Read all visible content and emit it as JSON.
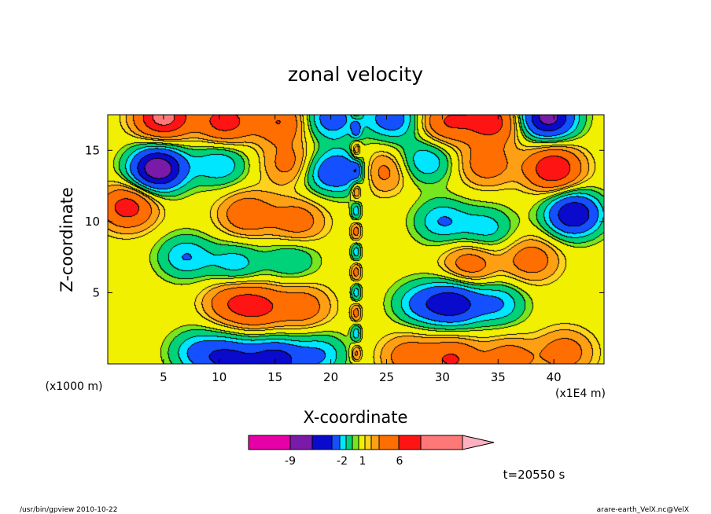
{
  "chart_data": {
    "type": "heatmap",
    "title": "zonal velocity",
    "xlabel": "X-coordinate",
    "ylabel": "Z-coordinate",
    "x_unit_label": "(x1E4 m)",
    "y_unit_label": "(x1000 m)",
    "xlim": [
      0,
      44.5
    ],
    "ylim": [
      0,
      17.5
    ],
    "x_ticks": [
      "5",
      "10",
      "15",
      "20",
      "25",
      "30",
      "35",
      "40"
    ],
    "y_ticks": [
      "5",
      "10",
      "15"
    ],
    "colorbar": {
      "colors": [
        "#e600a8",
        "#7a1aa8",
        "#0a0acc",
        "#1450ff",
        "#00e6ff",
        "#00d27a",
        "#78e61e",
        "#f0f000",
        "#ffd21e",
        "#ffa014",
        "#ff6e00",
        "#ff1414",
        "#ff7878"
      ],
      "extend_color": "#ffb0c0",
      "tick_labels": [
        "-9",
        "-2",
        "1",
        "6"
      ]
    },
    "sources": [
      {
        "x": 4.5,
        "z": 13.7,
        "a": -9
      },
      {
        "x": 40.0,
        "z": 13.7,
        "a": 6
      },
      {
        "x": 1.8,
        "z": 11.0,
        "a": 5
      },
      {
        "x": 41.8,
        "z": 10.5,
        "a": -7
      },
      {
        "x": 5.0,
        "z": 17.3,
        "a": 7
      },
      {
        "x": 10.5,
        "z": 17.0,
        "a": 5
      },
      {
        "x": 15.5,
        "z": 17.0,
        "a": 4
      },
      {
        "x": 20.0,
        "z": 17.2,
        "a": -4
      },
      {
        "x": 25.5,
        "z": 17.2,
        "a": -4
      },
      {
        "x": 30.5,
        "z": 17.0,
        "a": 4
      },
      {
        "x": 34.5,
        "z": 17.0,
        "a": 5
      },
      {
        "x": 39.5,
        "z": 17.3,
        "a": -8
      },
      {
        "x": 10.0,
        "z": 14.0,
        "a": -3
      },
      {
        "x": 16.5,
        "z": 14.0,
        "a": 3
      },
      {
        "x": 28.5,
        "z": 14.2,
        "a": -3
      },
      {
        "x": 34.0,
        "z": 14.0,
        "a": 3
      },
      {
        "x": 19.0,
        "z": 13.5,
        "a": -2.5
      },
      {
        "x": 21.3,
        "z": 13.5,
        "a": -4
      },
      {
        "x": 24.5,
        "z": 13.5,
        "a": 3
      },
      {
        "x": 12.5,
        "z": 10.5,
        "a": 3.5
      },
      {
        "x": 17.0,
        "z": 10.0,
        "a": 3
      },
      {
        "x": 30.0,
        "z": 10.0,
        "a": -3
      },
      {
        "x": 34.0,
        "z": 9.5,
        "a": -2.5
      },
      {
        "x": 7.0,
        "z": 7.5,
        "a": -3
      },
      {
        "x": 11.5,
        "z": 7.0,
        "a": -2.5
      },
      {
        "x": 16.5,
        "z": 7.3,
        "a": -2
      },
      {
        "x": 32.5,
        "z": 7.0,
        "a": 3
      },
      {
        "x": 38.0,
        "z": 7.3,
        "a": 3
      },
      {
        "x": 11.0,
        "z": 4.3,
        "a": 3
      },
      {
        "x": 13.5,
        "z": 4.0,
        "a": 4
      },
      {
        "x": 17.5,
        "z": 4.0,
        "a": 3
      },
      {
        "x": 28.0,
        "z": 4.2,
        "a": -3
      },
      {
        "x": 31.0,
        "z": 4.2,
        "a": -6
      },
      {
        "x": 35.0,
        "z": 4.2,
        "a": -3
      },
      {
        "x": 11.0,
        "z": 0.3,
        "a": -5
      },
      {
        "x": 15.0,
        "z": 0.2,
        "a": -6
      },
      {
        "x": 19.0,
        "z": 0.6,
        "a": -3
      },
      {
        "x": 27.0,
        "z": 0.5,
        "a": 3
      },
      {
        "x": 31.0,
        "z": 0.3,
        "a": 4
      },
      {
        "x": 36.0,
        "z": 0.3,
        "a": 3
      },
      {
        "x": 8.0,
        "z": 0.8,
        "a": -3
      },
      {
        "x": 41.0,
        "z": 0.8,
        "a": 3
      }
    ]
  },
  "footer": {
    "time_label": "t=20550 s",
    "program": "/usr/bin/gpview   2010-10-22",
    "file": "arare-earth_VelX.nc@VelX"
  }
}
